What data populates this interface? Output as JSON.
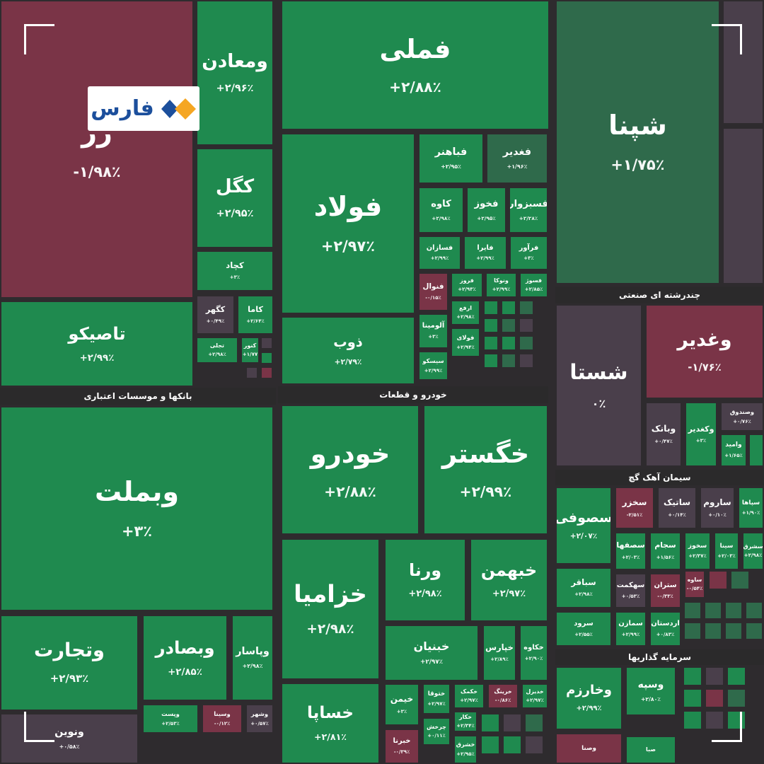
{
  "logo": "فارس",
  "sectors": [
    {
      "tiles": [
        {
          "symbol": "رر",
          "change": "-۱/۹۸٪"
        },
        {
          "symbol": "ومعادن",
          "change": "+۲/۹۶٪"
        },
        {
          "symbol": "کگل",
          "change": "+۲/۹۵٪"
        },
        {
          "symbol": "کچاد",
          "change": "+۳٪"
        },
        {
          "symbol": "کگهر",
          "change": "+۰/۴۹٪"
        },
        {
          "symbol": "کاما",
          "change": "+۲/۶۴٪"
        },
        {
          "symbol": "تجلی",
          "change": "+۲/۹۸٪"
        },
        {
          "symbol": "کنور",
          "change": "+۱/۷۷"
        },
        {
          "symbol": "تاصیکو",
          "change": "+۲/۹۹٪"
        },
        {
          "symbol": "فملی",
          "change": "+۲/۸۸٪"
        },
        {
          "symbol": "فولاد",
          "change": "+۲/۹۷٪"
        },
        {
          "symbol": "ذوب",
          "change": "+۲/۷۹٪"
        },
        {
          "symbol": "فباهنر",
          "change": "+۲/۹۵٪"
        },
        {
          "symbol": "فغدیر",
          "change": "+۱/۹۶٪"
        },
        {
          "symbol": "کاوه",
          "change": "+۲/۹۸٪"
        },
        {
          "symbol": "فخوز",
          "change": "+۲/۹۵٪"
        },
        {
          "symbol": "فسبزوار",
          "change": "+۲/۲۸٪"
        },
        {
          "symbol": "فسازان",
          "change": "+۲/۹۹٪"
        },
        {
          "symbol": "فایرا",
          "change": "+۲/۹۹٪"
        },
        {
          "symbol": "فرآور",
          "change": "+۳٪"
        },
        {
          "symbol": "فنوال",
          "change": "-۰/۱۵٪"
        },
        {
          "symbol": "فروز",
          "change": "+۲/۹۳٪"
        },
        {
          "symbol": "ونوکا",
          "change": "+۲/۹۹٪"
        },
        {
          "symbol": "فسوژ",
          "change": "+۲/۸۵٪"
        },
        {
          "symbol": "ارفع",
          "change": "+۲/۹۸٪"
        },
        {
          "symbol": "آلومینا",
          "change": "+۳٪"
        },
        {
          "symbol": "فولای",
          "change": "+۲/۹۴٪"
        },
        {
          "symbol": "سیسکو",
          "change": "+۲/۹۹٪"
        },
        {
          "symbol": "شپنا",
          "change": "+۱/۷۵٪"
        }
      ]
    },
    {
      "name": "بانکها و موسسات اعتباری",
      "tiles": [
        {
          "symbol": "وبملت",
          "change": "+۳٪"
        },
        {
          "symbol": "وتجارت",
          "change": "+۲/۹۳٪"
        },
        {
          "symbol": "وبصادر",
          "change": "+۲/۸۵٪"
        },
        {
          "symbol": "وپاسار",
          "change": "+۲/۹۸٪"
        },
        {
          "symbol": "ونوین",
          "change": "+۰/۵۸٪"
        },
        {
          "symbol": "وپست",
          "change": "+۲/۵۳٪"
        },
        {
          "symbol": "وسینا",
          "change": "-۰/۱۲٪"
        },
        {
          "symbol": "وشهر",
          "change": "+۰/۵۷٪"
        }
      ]
    },
    {
      "name": "خودرو و قطعات",
      "tiles": [
        {
          "symbol": "خودرو",
          "change": "+۲/۸۸٪"
        },
        {
          "symbol": "خگستر",
          "change": "+۲/۹۹٪"
        },
        {
          "symbol": "خزامیا",
          "change": "+۲/۹۸٪"
        },
        {
          "symbol": "ورنا",
          "change": "+۲/۹۸٪"
        },
        {
          "symbol": "خبهمن",
          "change": "+۲/۹۷٪"
        },
        {
          "symbol": "خساپا",
          "change": "+۲/۸۱٪"
        },
        {
          "symbol": "خبنیان",
          "change": "+۲/۹۷٪"
        },
        {
          "symbol": "خپارس",
          "change": "+۲/۸۹٪"
        },
        {
          "symbol": "خکاوه",
          "change": "+۲/۹۰٪"
        },
        {
          "symbol": "خیمن",
          "change": "+۳٪"
        },
        {
          "symbol": "ختوقا",
          "change": "+۲/۹۷٪"
        },
        {
          "symbol": "خکمک",
          "change": "+۲/۹۷٪"
        },
        {
          "symbol": "خرینگ",
          "change": "-۰/۸۶٪"
        },
        {
          "symbol": "خدیزل",
          "change": "+۲/۹۷٪"
        },
        {
          "symbol": "خبرنا",
          "change": "-۰/۳۹٪"
        },
        {
          "symbol": "چرخش",
          "change": "+۰/۱۱٪"
        },
        {
          "symbol": "خکار",
          "change": "+۲/۳۴٪"
        },
        {
          "symbol": "خشرق",
          "change": "+۲/۹۵٪"
        }
      ]
    },
    {
      "name": "چندرشته ای صنعتی",
      "tiles": [
        {
          "symbol": "شستا",
          "change": "۰٪"
        },
        {
          "symbol": "وغدیر",
          "change": "-۱/۷۶٪"
        },
        {
          "symbol": "وبانک",
          "change": "+۰/۴۷٪"
        },
        {
          "symbol": "وکغدیر",
          "change": "+۳٪"
        },
        {
          "symbol": "وصندوق",
          "change": "+۰/۷۶٪"
        },
        {
          "symbol": "وامید",
          "change": "+۱/۶۵٪"
        }
      ]
    },
    {
      "name": "سیمان آهک گچ",
      "tiles": [
        {
          "symbol": "سصوفی",
          "change": "+۲/۰۷٪"
        },
        {
          "symbol": "سخزر",
          "change": "-۲/۵۱٪"
        },
        {
          "symbol": "ساتیک",
          "change": "+۰/۱۴٪"
        },
        {
          "symbol": "ساروم",
          "change": "+۰/۱۰٪"
        },
        {
          "symbol": "سپاها",
          "change": "+۱/۹۰٪"
        },
        {
          "symbol": "سباقر",
          "change": "+۲/۹۸٪"
        },
        {
          "symbol": "سصفها",
          "change": "+۲/۰۳٪"
        },
        {
          "symbol": "سجام",
          "change": "+۱/۵۶٪"
        },
        {
          "symbol": "سخوز",
          "change": "+۲/۳۷٪"
        },
        {
          "symbol": "سینا",
          "change": "+۲/۰۳٪"
        },
        {
          "symbol": "سشرق",
          "change": "+۲/۹۸٪"
        },
        {
          "symbol": "سهکمت",
          "change": "+۰/۵۳٪"
        },
        {
          "symbol": "ستران",
          "change": "-۰/۳۳٪"
        },
        {
          "symbol": "ساوه",
          "change": "-۰/۵۴٪"
        },
        {
          "symbol": "سرود",
          "change": "+۲/۵۵٪"
        },
        {
          "symbol": "سمازن",
          "change": "+۲/۹۹٪"
        },
        {
          "symbol": "اردستان",
          "change": "+۰/۸۳٪"
        }
      ]
    },
    {
      "name": "سرمایه گذاریها",
      "tiles": [
        {
          "symbol": "وخارزم",
          "change": "+۲/۹۹٪"
        },
        {
          "symbol": "وسپه",
          "change": "+۲/۸۰٪"
        },
        {
          "symbol": "وصنا"
        },
        {
          "symbol": "صبا"
        }
      ]
    }
  ]
}
